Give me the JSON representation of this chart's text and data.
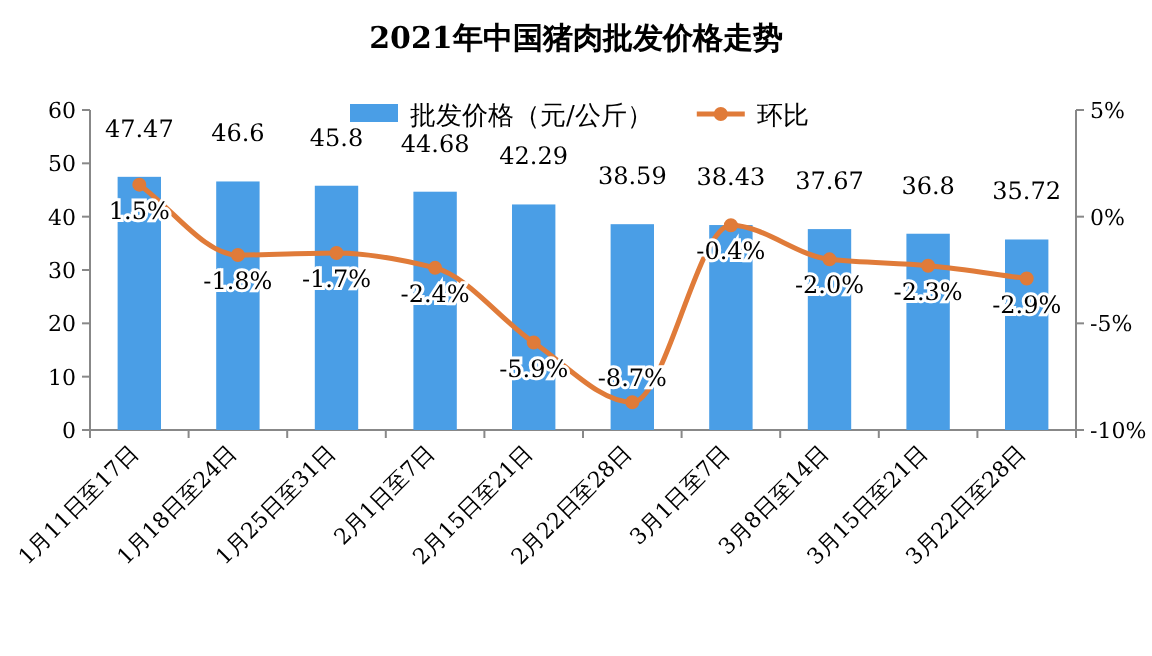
{
  "chart_data": {
    "type": "bar",
    "title": "2021年中国猪肉批发价格走势",
    "categories": [
      "1月11日至17日",
      "1月18日至24日",
      "1月25日至31日",
      "2月1日至7日",
      "2月15日至21日",
      "2月22日至28日",
      "3月1日至7日",
      "3月8日至14日",
      "3月15日至21日",
      "3月22日至28日"
    ],
    "series": [
      {
        "name": "批发价格（元/公斤）",
        "color": "#4a9ee6",
        "values": [
          47.47,
          46.6,
          45.8,
          44.68,
          42.29,
          38.59,
          38.43,
          37.67,
          36.8,
          35.72
        ],
        "value_labels": [
          "47.47",
          "46.6",
          "45.8",
          "44.68",
          "42.29",
          "38.59",
          "38.43",
          "37.67",
          "36.8",
          "35.72"
        ]
      },
      {
        "name": "环比",
        "type": "line",
        "axis": "y2",
        "color": "#e07b39",
        "marker": "circle",
        "values": [
          1.5,
          -1.8,
          -1.7,
          -2.4,
          -5.9,
          -8.7,
          -0.4,
          -2.0,
          -2.3,
          -2.9
        ],
        "value_labels": [
          "1.5%",
          "-1.8%",
          "-1.7%",
          "-2.4%",
          "-5.9%",
          "-8.7%",
          "-0.4%",
          "-2.0%",
          "-2.3%",
          "-2.9%"
        ]
      }
    ],
    "ylim": [
      0,
      60
    ],
    "yticks": [
      0,
      10,
      20,
      30,
      40,
      50,
      60
    ],
    "y2lim": [
      -10,
      5
    ],
    "y2ticks": [
      {
        "value": 5,
        "label": "5%"
      },
      {
        "value": 0,
        "label": "0%"
      },
      {
        "value": -5,
        "label": "-5%"
      },
      {
        "value": -10,
        "label": "-10%"
      }
    ],
    "legend": "top",
    "grid": false
  }
}
